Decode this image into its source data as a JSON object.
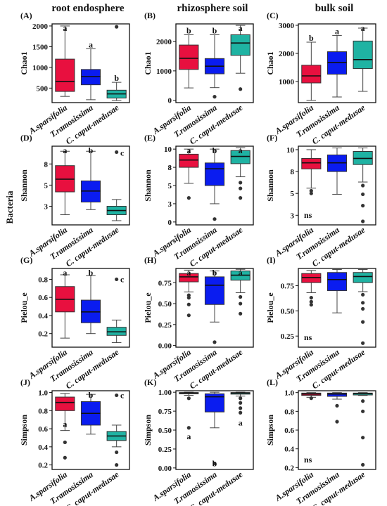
{
  "figure": {
    "column_titles": [
      "root endosphere",
      "rhizosphere soil",
      "bulk soil"
    ],
    "row_label": "Bacteria",
    "categories": [
      "A.sparsifolia",
      "T.ramosissima",
      "C. caput-medusae"
    ],
    "colors": [
      "#e8103f",
      "#0a1cf0",
      "#1fb3a3"
    ]
  },
  "chart_data": [
    {
      "panel": "(A)",
      "type": "box",
      "ylabel": "Chao1",
      "ylim": [
        150,
        2050
      ],
      "yticks": [
        500,
        1000,
        1500,
        2000
      ],
      "boxes": [
        {
          "q1": 420,
          "median": 660,
          "q3": 1200,
          "whisker_low": 300,
          "whisker_high": 2000,
          "outliers": []
        },
        {
          "q1": 580,
          "median": 780,
          "q3": 950,
          "whisker_low": 220,
          "whisker_high": 1450,
          "outliers": []
        },
        {
          "q1": 260,
          "median": 360,
          "q3": 450,
          "whisker_low": 200,
          "whisker_high": 640,
          "outliers": [
            1980
          ]
        }
      ],
      "letters": [
        "a",
        "a",
        "b"
      ]
    },
    {
      "panel": "(B)",
      "type": "box",
      "ylabel": "Chao1",
      "ylim": [
        -80,
        2600
      ],
      "yticks": [
        0,
        1000,
        2000
      ],
      "boxes": [
        {
          "q1": 1050,
          "median": 1430,
          "q3": 1880,
          "whisker_low": 420,
          "whisker_high": 2230,
          "outliers": []
        },
        {
          "q1": 900,
          "median": 1160,
          "q3": 1420,
          "whisker_low": 430,
          "whisker_high": 2230,
          "outliers": [
            120
          ]
        },
        {
          "q1": 1530,
          "median": 1950,
          "q3": 2230,
          "whisker_low": 920,
          "whisker_high": 2550,
          "outliers": [
            380
          ]
        }
      ],
      "letters": [
        "b",
        "b",
        "a"
      ]
    },
    {
      "panel": "(C)",
      "type": "box",
      "ylabel": "Chao1",
      "ylim": [
        250,
        3050
      ],
      "yticks": [
        1000,
        2000,
        3000
      ],
      "boxes": [
        {
          "q1": 950,
          "median": 1200,
          "q3": 1580,
          "whisker_low": 330,
          "whisker_high": 2400,
          "outliers": []
        },
        {
          "q1": 1260,
          "median": 1680,
          "q3": 2060,
          "whisker_low": 450,
          "whisker_high": 2640,
          "outliers": []
        },
        {
          "q1": 1460,
          "median": 1780,
          "q3": 2440,
          "whisker_low": 650,
          "whisker_high": 2900,
          "outliers": []
        }
      ],
      "letters": [
        "b",
        "a",
        "a"
      ]
    },
    {
      "panel": "(D)",
      "type": "box",
      "ylabel": "Shannon",
      "ylim": [
        0.3,
        9.6
      ],
      "yticks": [
        2.5,
        5.0,
        7.5
      ],
      "boxes": [
        {
          "q1": 4.2,
          "median": 5.7,
          "q3": 7.3,
          "whisker_low": 1.5,
          "whisker_high": 9.0,
          "outliers": []
        },
        {
          "q1": 3.0,
          "median": 4.3,
          "q3": 5.5,
          "whisker_low": 2.1,
          "whisker_high": 9.0,
          "outliers": []
        },
        {
          "q1": 1.5,
          "median": 2.0,
          "q3": 2.5,
          "whisker_low": 0.8,
          "whisker_high": 3.3,
          "outliers": [
            8.9
          ]
        }
      ],
      "letters": [
        "a",
        "b",
        "c"
      ]
    },
    {
      "panel": "(E)",
      "type": "box",
      "ylabel": "Shannon",
      "ylim": [
        -0.4,
        10.4
      ],
      "yticks": [
        0.0,
        2.5,
        5.0,
        7.5,
        10.0
      ],
      "boxes": [
        {
          "q1": 7.5,
          "median": 8.5,
          "q3": 9.3,
          "whisker_low": 5.3,
          "whisker_high": 10.0,
          "outliers": [
            3.3
          ]
        },
        {
          "q1": 5.0,
          "median": 7.3,
          "q3": 8.1,
          "whisker_low": 2.5,
          "whisker_high": 10.0,
          "outliers": [
            0.4
          ]
        },
        {
          "q1": 8.0,
          "median": 9.0,
          "q3": 9.8,
          "whisker_low": 6.2,
          "whisker_high": 10.2,
          "outliers": [
            5.4,
            4.6,
            3.3
          ]
        }
      ],
      "letters": [
        "a",
        "b",
        "a"
      ]
    },
    {
      "panel": "(F)",
      "type": "box",
      "ylabel": "Shannon",
      "ylim": [
        1.4,
        10.4
      ],
      "yticks": [
        2.5,
        5.0,
        7.5,
        10.0
      ],
      "boxes": [
        {
          "q1": 7.8,
          "median": 8.5,
          "q3": 9.0,
          "whisker_low": 5.6,
          "whisker_high": 10.0,
          "outliers": [
            5.3,
            5.0
          ]
        },
        {
          "q1": 7.5,
          "median": 8.5,
          "q3": 9.4,
          "whisker_low": 4.9,
          "whisker_high": 10.2,
          "outliers": []
        },
        {
          "q1": 8.3,
          "median": 9.0,
          "q3": 9.8,
          "whisker_low": 6.3,
          "whisker_high": 10.2,
          "outliers": [
            5.9,
            4.9,
            3.6,
            1.8
          ]
        }
      ],
      "letters": [
        "",
        "",
        ""
      ],
      "note": "ns"
    },
    {
      "panel": "(G)",
      "type": "box",
      "ylabel": "Pielou_e",
      "ylim": [
        0.05,
        0.92
      ],
      "yticks": [
        0.2,
        0.4,
        0.6,
        0.8
      ],
      "boxes": [
        {
          "q1": 0.44,
          "median": 0.58,
          "q3": 0.72,
          "whisker_low": 0.15,
          "whisker_high": 0.85,
          "outliers": []
        },
        {
          "q1": 0.32,
          "median": 0.44,
          "q3": 0.57,
          "whisker_low": 0.2,
          "whisker_high": 0.84,
          "outliers": []
        },
        {
          "q1": 0.18,
          "median": 0.22,
          "q3": 0.27,
          "whisker_low": 0.1,
          "whisker_high": 0.35,
          "outliers": [
            0.8
          ]
        }
      ],
      "letters": [
        "a",
        "b",
        "c"
      ]
    },
    {
      "panel": "(H)",
      "type": "box",
      "ylabel": "Pielou_e",
      "ylim": [
        -0.02,
        0.92
      ],
      "yticks": [
        0.0,
        0.25,
        0.5,
        0.75
      ],
      "boxes": [
        {
          "q1": 0.76,
          "median": 0.82,
          "q3": 0.86,
          "whisker_low": 0.64,
          "whisker_high": 0.9,
          "outliers": [
            0.6,
            0.57,
            0.49,
            0.36
          ]
        },
        {
          "q1": 0.49,
          "median": 0.72,
          "q3": 0.82,
          "whisker_low": 0.28,
          "whisker_high": 0.89,
          "outliers": [
            0.04
          ]
        },
        {
          "q1": 0.78,
          "median": 0.84,
          "q3": 0.89,
          "whisker_low": 0.63,
          "whisker_high": 0.91,
          "outliers": [
            0.58,
            0.5,
            0.38
          ]
        }
      ],
      "letters": [
        "a",
        "b",
        "a"
      ]
    },
    {
      "panel": "(I)",
      "type": "box",
      "ylabel": "Pielou_e",
      "ylim": [
        0.14,
        0.92
      ],
      "yticks": [
        0.25,
        0.5,
        0.75
      ],
      "boxes": [
        {
          "q1": 0.78,
          "median": 0.83,
          "q3": 0.87,
          "whisker_low": 0.68,
          "whisker_high": 0.9,
          "outliers": [
            0.63,
            0.59,
            0.56
          ]
        },
        {
          "q1": 0.7,
          "median": 0.81,
          "q3": 0.88,
          "whisker_low": 0.48,
          "whisker_high": 0.91,
          "outliers": []
        },
        {
          "q1": 0.78,
          "median": 0.84,
          "q3": 0.88,
          "whisker_low": 0.69,
          "whisker_high": 0.91,
          "outliers": [
            0.66,
            0.58,
            0.52,
            0.39,
            0.18
          ]
        }
      ],
      "letters": [
        "",
        "",
        ""
      ],
      "note": "ns"
    },
    {
      "panel": "(J)",
      "type": "box",
      "ylabel": "Simpson",
      "ylim": [
        0.15,
        1.02
      ],
      "yticks": [
        0.2,
        0.4,
        0.6,
        0.8,
        1.0
      ],
      "boxes": [
        {
          "q1": 0.8,
          "median": 0.89,
          "q3": 0.95,
          "whisker_low": 0.58,
          "whisker_high": 0.99,
          "outliers": [
            0.45,
            0.28
          ]
        },
        {
          "q1": 0.64,
          "median": 0.77,
          "q3": 0.9,
          "whisker_low": 0.54,
          "whisker_high": 0.98,
          "outliers": []
        },
        {
          "q1": 0.47,
          "median": 0.52,
          "q3": 0.57,
          "whisker_low": 0.4,
          "whisker_high": 0.64,
          "outliers": [
            0.97,
            0.34,
            0.2
          ]
        }
      ],
      "letters": [
        "a",
        "b",
        "c"
      ]
    },
    {
      "panel": "(K)",
      "type": "box",
      "ylabel": "Simpson",
      "ylim": [
        -0.02,
        1.02
      ],
      "yticks": [
        0.0,
        0.25,
        0.5,
        0.75,
        1.0
      ],
      "boxes": [
        {
          "q1": 0.98,
          "median": 0.99,
          "q3": 0.995,
          "whisker_low": 0.96,
          "whisker_high": 1.0,
          "outliers": [
            0.92,
            0.53
          ]
        },
        {
          "q1": 0.74,
          "median": 0.94,
          "q3": 0.98,
          "whisker_low": 0.53,
          "whisker_high": 1.0,
          "outliers": [
            0.06
          ]
        },
        {
          "q1": 0.975,
          "median": 0.99,
          "q3": 0.995,
          "whisker_low": 0.95,
          "whisker_high": 1.0,
          "outliers": [
            0.92,
            0.86,
            0.79,
            0.73
          ]
        }
      ],
      "letters": [
        "a",
        "b",
        "a"
      ]
    },
    {
      "panel": "(L)",
      "type": "box",
      "ylabel": "Simpson",
      "ylim": [
        0.18,
        1.02
      ],
      "yticks": [
        0.2,
        0.4,
        0.6,
        0.8,
        1.0
      ],
      "boxes": [
        {
          "q1": 0.97,
          "median": 0.985,
          "q3": 0.995,
          "whisker_low": 0.95,
          "whisker_high": 1.0,
          "outliers": [
            0.94
          ]
        },
        {
          "q1": 0.96,
          "median": 0.985,
          "q3": 0.995,
          "whisker_low": 0.93,
          "whisker_high": 1.0,
          "outliers": [
            0.86,
            0.69
          ]
        },
        {
          "q1": 0.975,
          "median": 0.99,
          "q3": 0.995,
          "whisker_low": 0.97,
          "whisker_high": 1.0,
          "outliers": [
            0.91,
            0.8,
            0.52,
            0.23
          ]
        }
      ],
      "letters": [
        "",
        "",
        ""
      ],
      "note": "ns"
    }
  ]
}
